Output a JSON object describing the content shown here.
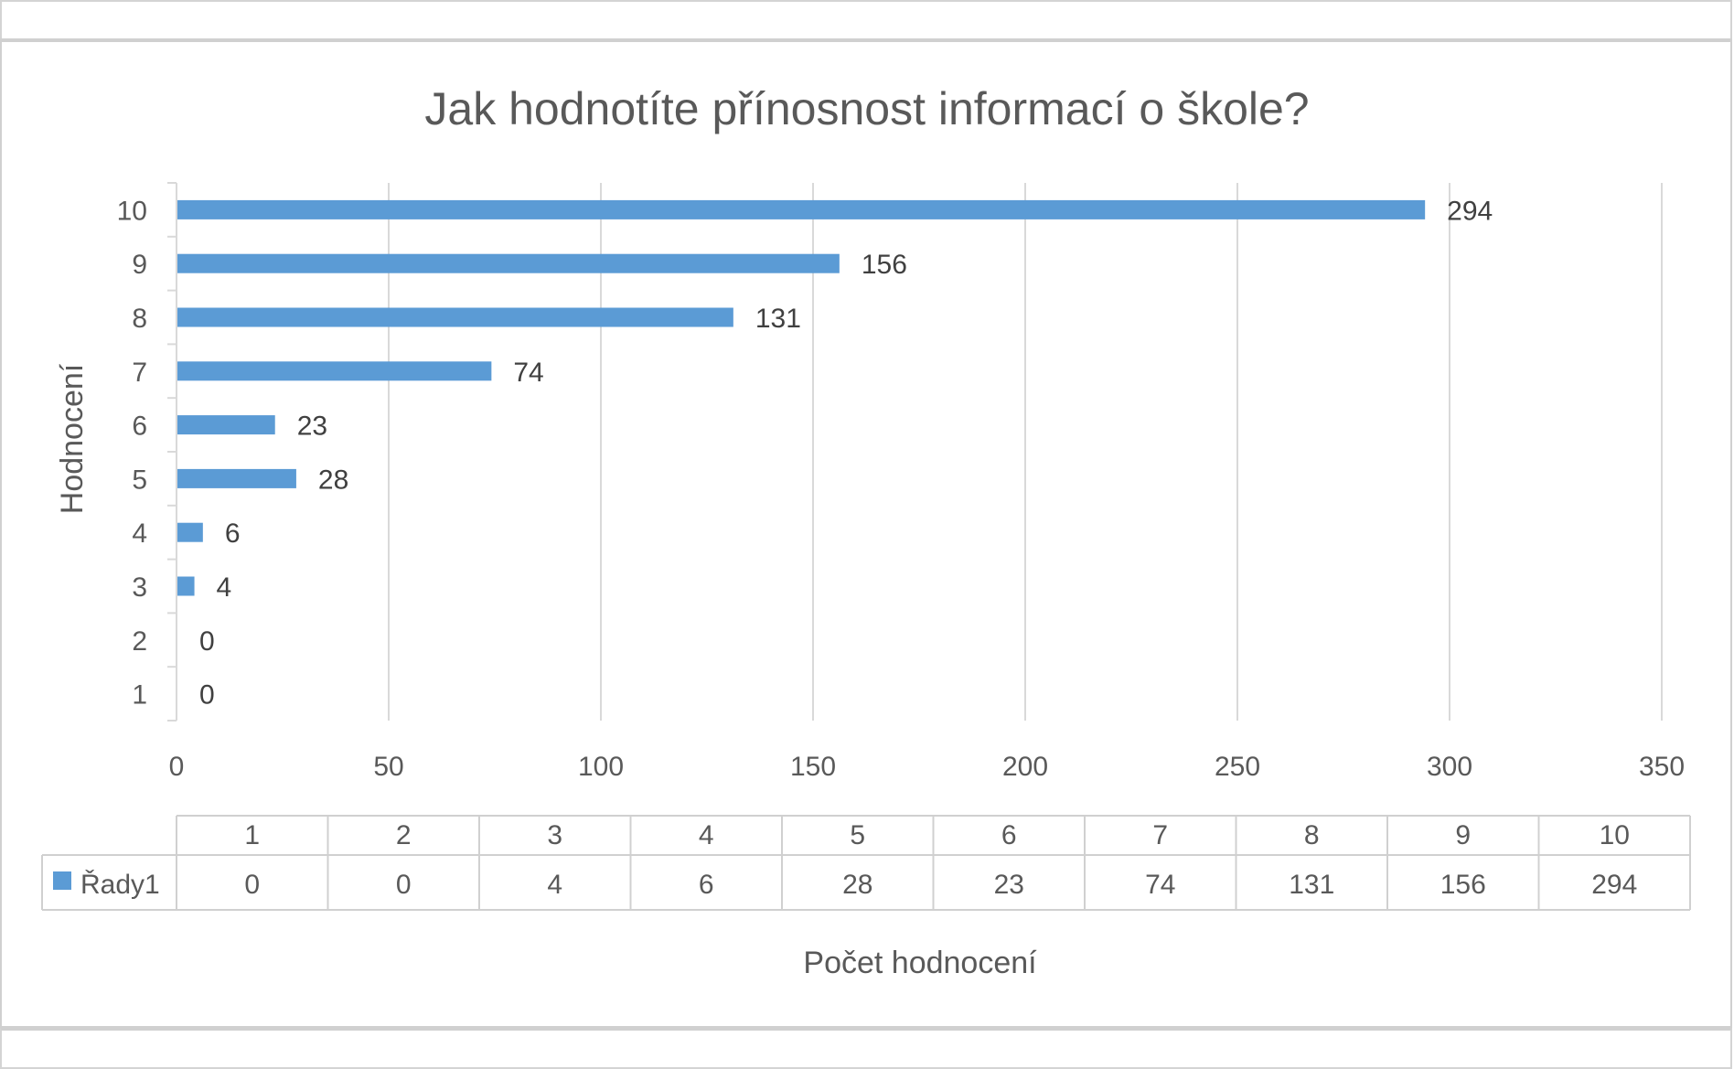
{
  "chart_data": {
    "type": "bar",
    "orientation": "horizontal",
    "title": "Jak hodnotíte přínosnost informací o škole?",
    "xlabel": "Počet hodnocení",
    "ylabel": "Hodnocení",
    "categories": [
      "1",
      "2",
      "3",
      "4",
      "5",
      "6",
      "7",
      "8",
      "9",
      "10"
    ],
    "series": [
      {
        "name": "Řady1",
        "values": [
          0,
          0,
          4,
          6,
          28,
          23,
          74,
          131,
          156,
          294
        ],
        "color": "#5b9bd5"
      }
    ],
    "xlim": [
      0,
      350
    ],
    "xticks": [
      "0",
      "50",
      "100",
      "150",
      "200",
      "250",
      "300",
      "350"
    ],
    "grid": true,
    "data_labels": true,
    "data_table": true
  }
}
